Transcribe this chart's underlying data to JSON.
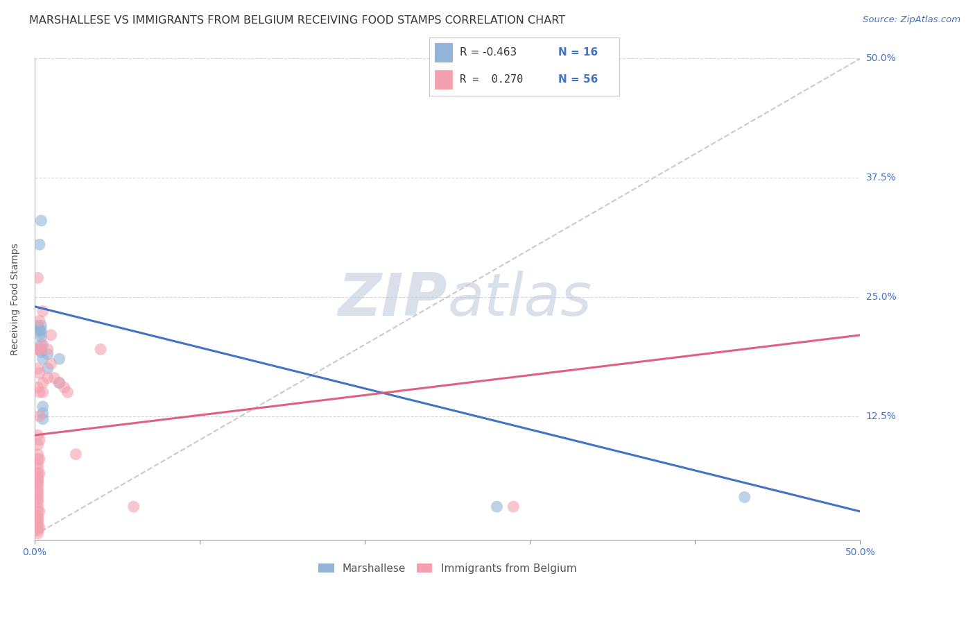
{
  "title": "MARSHALLESE VS IMMIGRANTS FROM BELGIUM RECEIVING FOOD STAMPS CORRELATION CHART",
  "source": "Source: ZipAtlas.com",
  "ylabel": "Receiving Food Stamps",
  "xlim": [
    0.0,
    0.5
  ],
  "ylim": [
    -0.005,
    0.5
  ],
  "blue_color": "#92B4D8",
  "pink_color": "#F4A0B0",
  "blue_line_color": "#4472C4",
  "pink_line_color": "#E06080",
  "dashed_diag_color": "#C8C8D8",
  "grid_color": "#CCCCCC",
  "blue_scatter": [
    [
      0.002,
      0.22
    ],
    [
      0.003,
      0.305
    ],
    [
      0.003,
      0.215
    ],
    [
      0.004,
      0.33
    ],
    [
      0.004,
      0.22
    ],
    [
      0.004,
      0.215
    ],
    [
      0.004,
      0.212
    ],
    [
      0.004,
      0.208
    ],
    [
      0.004,
      0.2
    ],
    [
      0.004,
      0.195
    ],
    [
      0.004,
      0.192
    ],
    [
      0.005,
      0.185
    ],
    [
      0.005,
      0.135
    ],
    [
      0.005,
      0.128
    ],
    [
      0.005,
      0.122
    ],
    [
      0.008,
      0.19
    ],
    [
      0.008,
      0.175
    ],
    [
      0.015,
      0.185
    ],
    [
      0.015,
      0.16
    ],
    [
      0.28,
      0.03
    ],
    [
      0.43,
      0.04
    ]
  ],
  "pink_scatter": [
    [
      0.002,
      0.27
    ],
    [
      0.002,
      0.195
    ],
    [
      0.002,
      0.175
    ],
    [
      0.002,
      0.155
    ],
    [
      0.002,
      0.105
    ],
    [
      0.002,
      0.095
    ],
    [
      0.002,
      0.085
    ],
    [
      0.002,
      0.08
    ],
    [
      0.002,
      0.075
    ],
    [
      0.002,
      0.07
    ],
    [
      0.002,
      0.065
    ],
    [
      0.002,
      0.06
    ],
    [
      0.002,
      0.058
    ],
    [
      0.002,
      0.055
    ],
    [
      0.002,
      0.052
    ],
    [
      0.002,
      0.048
    ],
    [
      0.002,
      0.045
    ],
    [
      0.002,
      0.042
    ],
    [
      0.002,
      0.038
    ],
    [
      0.002,
      0.035
    ],
    [
      0.002,
      0.03
    ],
    [
      0.002,
      0.025
    ],
    [
      0.002,
      0.02
    ],
    [
      0.002,
      0.018
    ],
    [
      0.002,
      0.015
    ],
    [
      0.002,
      0.012
    ],
    [
      0.002,
      0.008
    ],
    [
      0.002,
      0.005
    ],
    [
      0.002,
      0.002
    ],
    [
      0.003,
      0.225
    ],
    [
      0.003,
      0.195
    ],
    [
      0.003,
      0.17
    ],
    [
      0.003,
      0.15
    ],
    [
      0.003,
      0.125
    ],
    [
      0.003,
      0.1
    ],
    [
      0.003,
      0.08
    ],
    [
      0.003,
      0.065
    ],
    [
      0.003,
      0.025
    ],
    [
      0.003,
      0.008
    ],
    [
      0.005,
      0.235
    ],
    [
      0.005,
      0.2
    ],
    [
      0.005,
      0.16
    ],
    [
      0.005,
      0.15
    ],
    [
      0.008,
      0.195
    ],
    [
      0.008,
      0.165
    ],
    [
      0.01,
      0.21
    ],
    [
      0.01,
      0.18
    ],
    [
      0.012,
      0.165
    ],
    [
      0.015,
      0.16
    ],
    [
      0.018,
      0.155
    ],
    [
      0.02,
      0.15
    ],
    [
      0.025,
      0.085
    ],
    [
      0.04,
      0.195
    ],
    [
      0.06,
      0.03
    ],
    [
      0.29,
      0.03
    ]
  ],
  "blue_line_x": [
    0.0,
    0.5
  ],
  "blue_line_y": [
    0.24,
    0.025
  ],
  "pink_line_x": [
    0.0,
    0.5
  ],
  "pink_line_y": [
    0.105,
    0.21
  ],
  "diag_line_x": [
    0.0,
    0.5
  ],
  "diag_line_y": [
    0.0,
    0.5
  ],
  "title_fontsize": 11.5,
  "source_fontsize": 9.5,
  "axis_label_fontsize": 10,
  "tick_fontsize": 10,
  "right_ytick_vals": [
    0.5,
    0.375,
    0.25,
    0.125
  ],
  "right_ytick_labels": [
    "50.0%",
    "37.5%",
    "25.0%",
    "12.5%"
  ],
  "watermark_color": "#C0CCDD",
  "watermark_alpha": 0.6
}
